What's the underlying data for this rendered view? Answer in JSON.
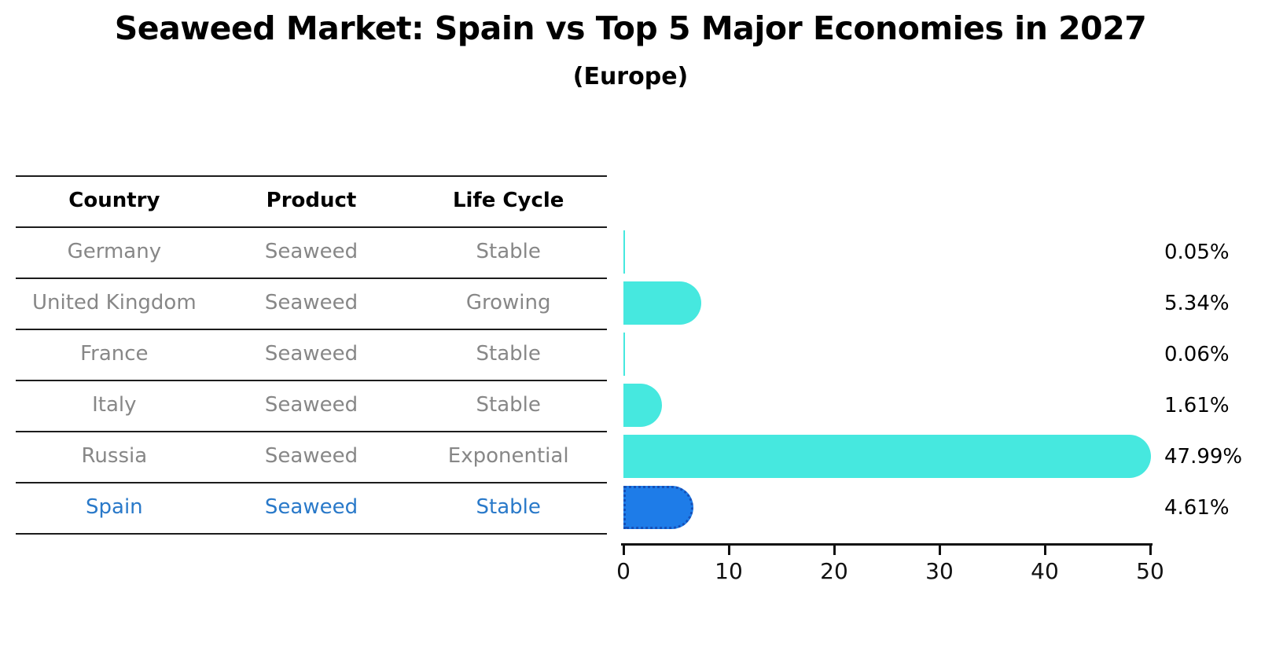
{
  "title": "Seaweed Market: Spain vs Top 5 Major Economies in 2027",
  "subtitle": "(Europe)",
  "table": {
    "headers": [
      "Country",
      "Product",
      "Life Cycle"
    ],
    "rows": [
      {
        "country": "Germany",
        "product": "Seaweed",
        "life_cycle": "Stable",
        "highlight": false
      },
      {
        "country": "United Kingdom",
        "product": "Seaweed",
        "life_cycle": "Growing",
        "highlight": false
      },
      {
        "country": "France",
        "product": "Seaweed",
        "life_cycle": "Stable",
        "highlight": false
      },
      {
        "country": "Italy",
        "product": "Seaweed",
        "life_cycle": "Stable",
        "highlight": false
      },
      {
        "country": "Russia",
        "product": "Seaweed",
        "life_cycle": "Exponential",
        "highlight": false
      },
      {
        "country": "Spain",
        "product": "Seaweed",
        "life_cycle": "Stable",
        "highlight": true
      }
    ]
  },
  "chart_data": {
    "type": "bar",
    "orientation": "horizontal",
    "title": "Seaweed Market: Spain vs Top 5 Major Economies in 2027",
    "subtitle": "(Europe)",
    "categories": [
      "Germany",
      "United Kingdom",
      "France",
      "Italy",
      "Russia",
      "Spain"
    ],
    "values": [
      0.05,
      5.34,
      0.06,
      1.61,
      47.99,
      4.61
    ],
    "value_labels": [
      "0.05%",
      "5.34%",
      "0.06%",
      "1.61%",
      "47.99%",
      "4.61%"
    ],
    "highlight_index": 5,
    "xlabel": "",
    "ylabel": "",
    "xlim": [
      0,
      50
    ],
    "x_ticks": [
      0,
      10,
      20,
      30,
      40,
      50
    ],
    "grid": false,
    "legend": false,
    "colors": {
      "bar": "#46e8df",
      "highlight_bar": "#1e7ce8",
      "highlight_border": "#1550b8",
      "highlight_text": "#2979c9",
      "table_text": "#878787",
      "header_text": "#000000",
      "line": "#1c1c1c"
    }
  }
}
